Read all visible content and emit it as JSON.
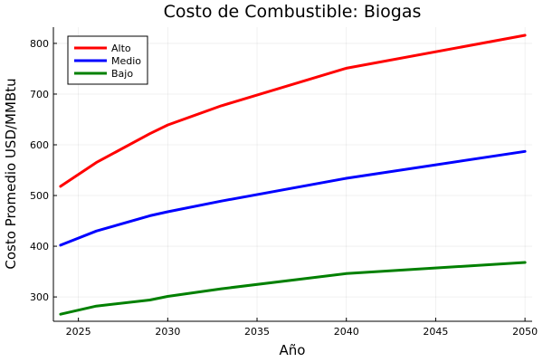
{
  "chart_data": {
    "type": "line",
    "title": "Costo de Combustible: Biogas",
    "xlabel": "Año",
    "ylabel": "Costo Promedio USD/MMBtu",
    "xlim": [
      2023.6,
      2050.4
    ],
    "ylim": [
      252,
      832
    ],
    "xticks": [
      2025,
      2030,
      2035,
      2040,
      2045,
      2050
    ],
    "yticks": [
      300,
      400,
      500,
      600,
      700,
      800
    ],
    "grid": true,
    "legend_position": "top-left",
    "series": [
      {
        "name": "Alto",
        "color": "#ff0000",
        "points": [
          [
            2024,
            518
          ],
          [
            2026,
            565
          ],
          [
            2029,
            622
          ],
          [
            2030,
            639
          ],
          [
            2033,
            677
          ],
          [
            2040,
            751
          ],
          [
            2050,
            816
          ]
        ]
      },
      {
        "name": "Medio",
        "color": "#0000ff",
        "points": [
          [
            2024,
            402
          ],
          [
            2026,
            430
          ],
          [
            2029,
            460
          ],
          [
            2030,
            468
          ],
          [
            2033,
            489
          ],
          [
            2040,
            534
          ],
          [
            2050,
            587
          ]
        ]
      },
      {
        "name": "Bajo",
        "color": "#008000",
        "points": [
          [
            2024,
            266
          ],
          [
            2026,
            282
          ],
          [
            2029,
            294
          ],
          [
            2030,
            301
          ],
          [
            2033,
            316
          ],
          [
            2040,
            346
          ],
          [
            2050,
            368
          ]
        ]
      }
    ]
  }
}
